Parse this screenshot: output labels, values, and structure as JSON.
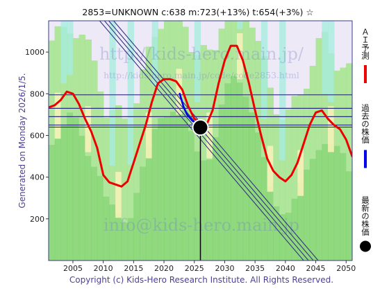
{
  "chart_data": {
    "type": "line",
    "title": "2853=UNKNOWN    c:638  m:723(+13%)  t:654(+3%)  ☆",
    "xlim": [
      2001,
      2051
    ],
    "ylim": [
      0,
      1150
    ],
    "x_ticks": [
      2005,
      2010,
      2015,
      2020,
      2025,
      2030,
      2035,
      2040,
      2045,
      2050
    ],
    "y_ticks": [
      200,
      400,
      600,
      800,
      1000
    ],
    "x_tick_labels": [
      "2005",
      "2010",
      "2015",
      "2020",
      "2025",
      "2030",
      "2035",
      "2040",
      "2045",
      "2050"
    ],
    "y_tick_labels": [
      "200",
      "400",
      "600",
      "800",
      "1000"
    ],
    "grid": false,
    "series": [
      {
        "name": "ＡＩ予測",
        "color": "#ee0000",
        "x": [
          2001,
          2002,
          2003,
          2004,
          2005,
          2006,
          2007,
          2008,
          2009,
          2010,
          2011,
          2012,
          2013,
          2014,
          2015,
          2016,
          2017,
          2018,
          2019,
          2020,
          2021,
          2022,
          2023,
          2024,
          2025,
          2026,
          2027,
          2028,
          2029,
          2030,
          2031,
          2032,
          2033,
          2034,
          2035,
          2036,
          2037,
          2038,
          2039,
          2040,
          2041,
          2042,
          2043,
          2044,
          2045,
          2046,
          2047,
          2048,
          2049,
          2050,
          2051
        ],
        "values": [
          735,
          745,
          770,
          810,
          800,
          750,
          680,
          620,
          540,
          410,
          375,
          365,
          355,
          380,
          470,
          560,
          650,
          760,
          850,
          870,
          870,
          860,
          820,
          740,
          680,
          660,
          650,
          720,
          850,
          960,
          1030,
          1030,
          960,
          850,
          720,
          600,
          490,
          430,
          400,
          380,
          410,
          470,
          560,
          650,
          710,
          720,
          680,
          650,
          630,
          580,
          500
        ]
      },
      {
        "name": "過去の株価",
        "color": "#0000ee",
        "x": [
          2022.6,
          2022.9,
          2023.2,
          2023.5,
          2023.8,
          2024.1,
          2024.4,
          2024.7,
          2025.0,
          2025.3,
          2025.6,
          2025.9
        ],
        "values": [
          800,
          770,
          740,
          720,
          700,
          690,
          680,
          670,
          665,
          660,
          650,
          642
        ]
      }
    ],
    "latest_point": {
      "name": "最新の株価",
      "x": 2026,
      "y": 638
    },
    "horizontal_lines": [
      795,
      730,
      690,
      650,
      640
    ],
    "trend_channel": [
      {
        "x0": 2009.4,
        "y0": 1150,
        "x1": 2043.0,
        "y1": 0
      },
      {
        "x0": 2010.2,
        "y0": 1150,
        "x1": 2043.8,
        "y1": 0
      },
      {
        "x0": 2010.9,
        "y0": 1150,
        "x1": 2044.6,
        "y1": 0
      },
      {
        "x0": 2011.7,
        "y0": 1150,
        "x1": 2045.4,
        "y1": 0
      }
    ],
    "legend": [
      {
        "label": "ＡＩ予測",
        "color": "#ee0000"
      },
      {
        "label": "過去の株価",
        "color": "#0000ee"
      },
      {
        "label": "最新の株価",
        "color": "#000000"
      }
    ],
    "legend_position": "right"
  },
  "side_text": "Generated on Monday 2026/1/5.",
  "footer": "Copyright (c) Kids-Hero Research Institute. All Rights Reserved.",
  "watermarks": {
    "site": "http://kids-hero.main.jp/",
    "page": "http://kids-hero.main.jp/code/code2853.html",
    "email": "info@kids-hero.main.jp"
  },
  "colors": {
    "plot_background": "#eee9f6",
    "band_green": "#7fd66a",
    "band_green_light": "#b6e9a2",
    "band_yellow": "#f6f1b8",
    "band_cyan": "#a8ecdf",
    "frame": "#3a3a8a",
    "hline": "#2a2a7a",
    "channel": "#333380"
  }
}
